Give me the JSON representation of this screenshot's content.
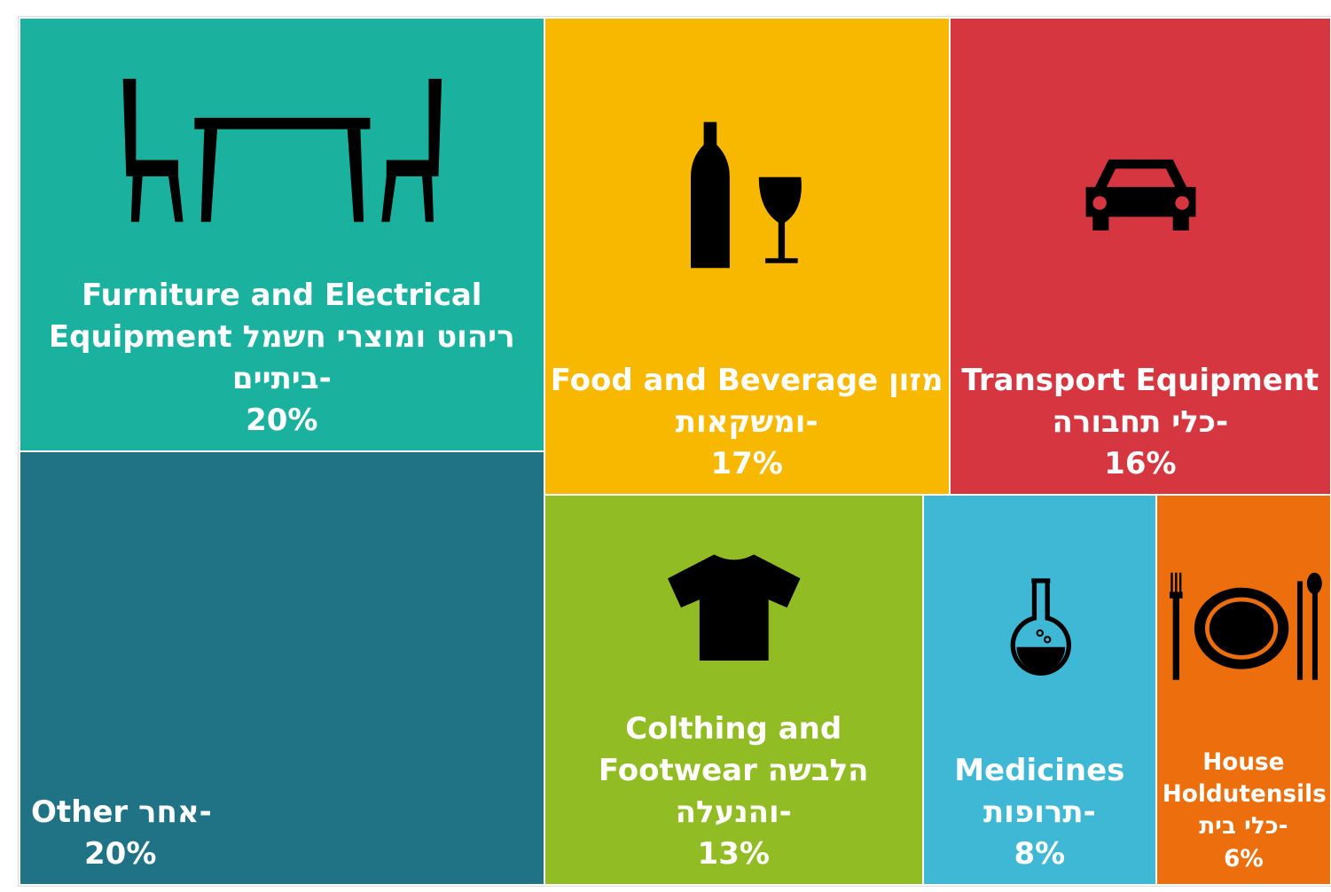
{
  "chart_data": {
    "type": "treemap",
    "categories": [
      "Furniture and Electrical Equipment ריהוט ומוצרי חשמל ביתיים-",
      "Other אחר-",
      "Food and Beverage מזון ומשקאות-",
      "Transport Equipment כלי תחבורה-",
      "Colthing and Footwear הלבשה והנעלה-",
      "Medicines תרופות-",
      "House Holdutensils כלי בית-"
    ],
    "values": [
      20,
      20,
      17,
      16,
      13,
      8,
      6
    ],
    "value_labels": [
      "20%",
      "20%",
      "17%",
      "16%",
      "13%",
      "8%",
      "6%"
    ],
    "colors": [
      "#1bb19f",
      "#1f7384",
      "#f8b800",
      "#d5363f",
      "#92bc23",
      "#3eb8d4",
      "#ec6e0c"
    ]
  }
}
